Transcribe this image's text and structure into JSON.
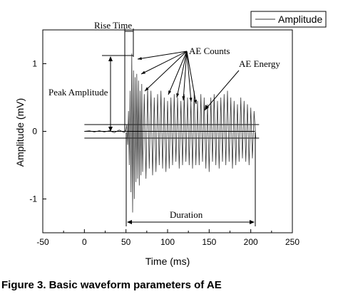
{
  "chart_data": {
    "type": "line",
    "xlabel": "Time (ms)",
    "ylabel": "Amplitude (mV)",
    "xlim": [
      -50,
      250
    ],
    "ylim": [
      -1.5,
      1.5
    ],
    "xticks": [
      -50,
      0,
      50,
      100,
      150,
      200,
      250
    ],
    "yticks": [
      -1,
      0,
      1
    ],
    "grid": false,
    "legend": {
      "position": "top-right",
      "entries": [
        "Amplitude"
      ]
    },
    "series": [
      {
        "name": "Amplitude",
        "color": "#333333",
        "x": [
          0,
          6,
          12,
          18,
          24,
          30,
          36,
          42,
          48,
          50,
          51,
          52,
          53,
          54,
          55,
          56,
          57,
          58,
          59,
          60,
          61,
          62,
          63,
          64,
          65,
          66,
          67,
          68,
          69,
          70,
          72,
          74,
          76,
          78,
          80,
          82,
          84,
          86,
          88,
          90,
          92,
          94,
          96,
          98,
          100,
          102,
          104,
          106,
          108,
          110,
          112,
          114,
          116,
          118,
          120,
          122,
          124,
          126,
          128,
          130,
          132,
          134,
          136,
          138,
          140,
          142,
          144,
          146,
          148,
          150,
          152,
          154,
          156,
          158,
          160,
          162,
          164,
          166,
          168,
          170,
          172,
          174,
          176,
          178,
          180,
          182,
          184,
          186,
          188,
          190,
          192,
          194,
          196,
          198,
          200,
          202,
          204,
          206
        ],
        "values": [
          0.0,
          0.01,
          -0.01,
          0.01,
          -0.01,
          0.01,
          -0.02,
          0.02,
          -0.02,
          0.02,
          0.1,
          -0.2,
          0.3,
          -0.5,
          0.6,
          -0.9,
          1.15,
          -1.2,
          0.9,
          -1.0,
          0.8,
          -0.75,
          0.85,
          -0.7,
          0.75,
          -0.8,
          0.6,
          -0.65,
          0.7,
          -0.6,
          0.55,
          -0.7,
          0.65,
          -0.55,
          0.6,
          -0.65,
          0.5,
          -0.6,
          0.55,
          -0.5,
          0.6,
          -0.55,
          0.5,
          -0.6,
          0.45,
          -0.55,
          0.5,
          -0.5,
          0.55,
          -0.45,
          0.5,
          -0.55,
          0.45,
          -0.5,
          0.55,
          -0.45,
          0.5,
          -0.5,
          0.45,
          -0.55,
          0.6,
          -0.5,
          0.45,
          -0.5,
          0.55,
          -0.45,
          0.5,
          -0.55,
          0.4,
          -0.6,
          0.5,
          -0.45,
          0.55,
          -0.5,
          0.45,
          -0.55,
          0.5,
          -0.45,
          0.55,
          -0.5,
          0.6,
          -0.45,
          0.5,
          -0.55,
          0.45,
          -0.5,
          0.4,
          -0.45,
          0.5,
          -0.4,
          0.45,
          -0.45,
          0.4,
          -0.5,
          0.35,
          -0.4,
          0.3,
          -0.1
        ]
      }
    ],
    "threshold": [
      0.1,
      -0.1
    ],
    "annotations": {
      "rise_time": "Rise Time",
      "ae_counts": "AE Counts",
      "ae_energy": "AE Energy",
      "peak_amplitude": "Peak Amplitude",
      "duration": "Duration"
    }
  },
  "caption": "Figure 3. Basic waveform parameters of AE"
}
